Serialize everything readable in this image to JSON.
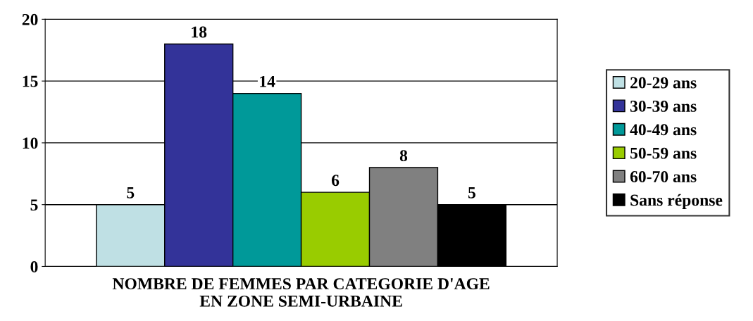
{
  "chart_data": {
    "type": "bar",
    "xlabel": "NOMBRE DE FEMMES PAR CATEGORIE D'AGE\nEN ZONE SEMI-URBAINE",
    "categories": [
      null
    ],
    "series": [
      {
        "name": "20-29 ans",
        "color": "#bfe0e4",
        "values": [
          5
        ]
      },
      {
        "name": "30-39 ans",
        "color": "#333399",
        "values": [
          18
        ]
      },
      {
        "name": "40-49 ans",
        "color": "#009999",
        "values": [
          14
        ]
      },
      {
        "name": "50-59 ans",
        "color": "#99cc00",
        "values": [
          6
        ]
      },
      {
        "name": "60-70 ans",
        "color": "#808080",
        "values": [
          8
        ]
      },
      {
        "name": "Sans réponse",
        "color": "#000000",
        "values": [
          5
        ]
      }
    ],
    "ylim": [
      0,
      20
    ],
    "yticks": [
      0,
      5,
      10,
      15,
      20
    ],
    "grid": "y",
    "legend": "right",
    "data_labels": true
  }
}
